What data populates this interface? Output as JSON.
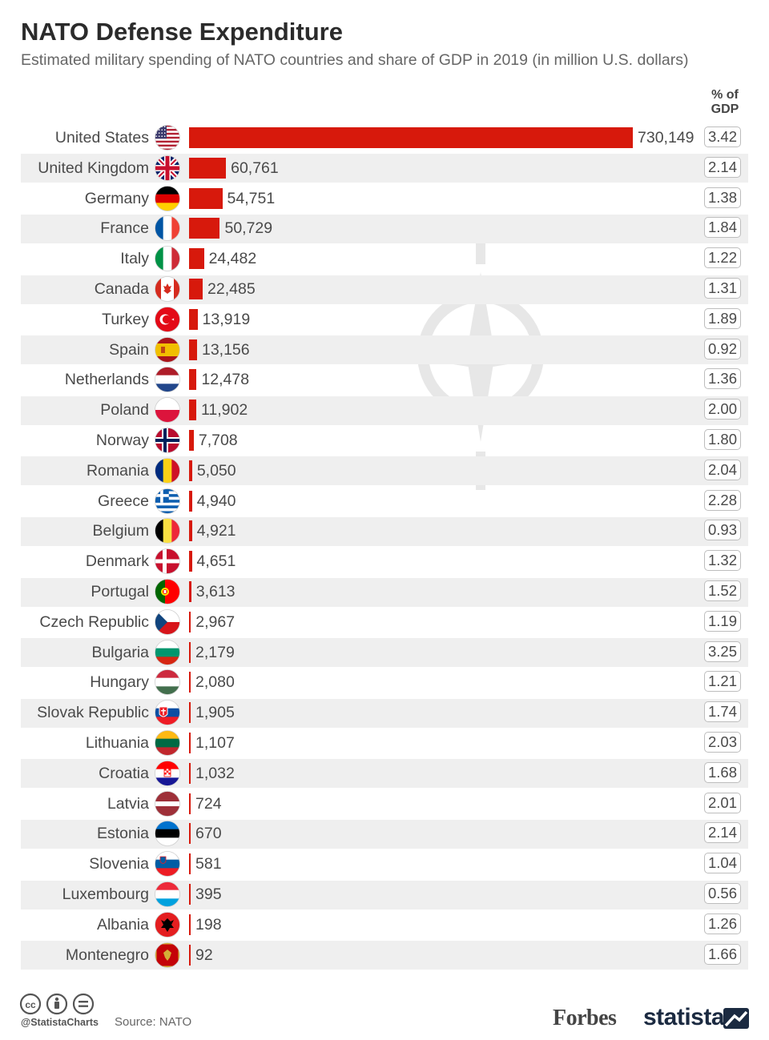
{
  "header": {
    "title": "NATO Defense Expenditure",
    "subtitle": "Estimated military spending of NATO countries and share of GDP in 2019 (in million U.S. dollars)",
    "gdp_column_label_1": "% of",
    "gdp_column_label_2": "GDP"
  },
  "chart_data": {
    "type": "bar",
    "orientation": "horizontal",
    "title": "NATO Defense Expenditure",
    "subtitle": "Estimated military spending of NATO countries and share of GDP in 2019 (in million U.S. dollars)",
    "categories": [
      "United States",
      "United Kingdom",
      "Germany",
      "France",
      "Italy",
      "Canada",
      "Turkey",
      "Spain",
      "Netherlands",
      "Poland",
      "Norway",
      "Romania",
      "Greece",
      "Belgium",
      "Denmark",
      "Portugal",
      "Czech Republic",
      "Bulgaria",
      "Hungary",
      "Slovak Republic",
      "Lithuania",
      "Croatia",
      "Latvia",
      "Estonia",
      "Slovenia",
      "Luxembourg",
      "Albania",
      "Montenegro"
    ],
    "series": [
      {
        "values": [
          730149,
          60761,
          54751,
          50729,
          24482,
          22485,
          13919,
          13156,
          12478,
          11902,
          7708,
          5050,
          4940,
          4921,
          4651,
          3613,
          2967,
          2179,
          2080,
          1905,
          1107,
          1032,
          724,
          670,
          581,
          395,
          198,
          92
        ]
      },
      {
        "name": "% of GDP",
        "values": [
          3.42,
          2.14,
          1.38,
          1.84,
          1.22,
          1.31,
          1.89,
          0.92,
          1.36,
          2.0,
          1.8,
          2.04,
          2.28,
          0.93,
          1.32,
          1.52,
          1.19,
          3.25,
          1.21,
          1.74,
          2.03,
          1.68,
          2.01,
          2.14,
          1.04,
          0.56,
          1.26,
          1.66
        ]
      }
    ],
    "value_labels": [
      "730,149",
      "60,761",
      "54,751",
      "50,729",
      "24,482",
      "22,485",
      "13,919",
      "13,156",
      "12,478",
      "11,902",
      "7,708",
      "5,050",
      "4,940",
      "4,921",
      "4,651",
      "3,613",
      "2,967",
      "2,179",
      "2,080",
      "1,905",
      "1,107",
      "1,032",
      "724",
      "670",
      "581",
      "395",
      "198",
      "92"
    ],
    "gdp_labels": [
      "3.42",
      "2.14",
      "1.38",
      "1.84",
      "1.22",
      "1.31",
      "1.89",
      "0.92",
      "1.36",
      "2.00",
      "1.80",
      "2.04",
      "2.28",
      "0.93",
      "1.32",
      "1.52",
      "1.19",
      "3.25",
      "1.21",
      "1.74",
      "2.03",
      "1.68",
      "2.01",
      "2.14",
      "1.04",
      "0.56",
      "1.26",
      "1.66"
    ],
    "xlim": [
      0,
      730149
    ],
    "bar_color": "#d7190c",
    "row_band_color": "#efefef",
    "flags": [
      "flag-us-icon",
      "flag-uk-icon",
      "flag-germany-icon",
      "flag-france-icon",
      "flag-italy-icon",
      "flag-canada-icon",
      "flag-turkey-icon",
      "flag-spain-icon",
      "flag-netherlands-icon",
      "flag-poland-icon",
      "flag-norway-icon",
      "flag-romania-icon",
      "flag-greece-icon",
      "flag-belgium-icon",
      "flag-denmark-icon",
      "flag-portugal-icon",
      "flag-czech-icon",
      "flag-bulgaria-icon",
      "flag-hungary-icon",
      "flag-slovakia-icon",
      "flag-lithuania-icon",
      "flag-croatia-icon",
      "flag-latvia-icon",
      "flag-estonia-icon",
      "flag-slovenia-icon",
      "flag-luxembourg-icon",
      "flag-albania-icon",
      "flag-montenegro-icon"
    ]
  },
  "footer": {
    "handle": "@StatistaCharts",
    "source": "Source: NATO",
    "brand_forbes": "Forbes",
    "brand_statista": "statista"
  }
}
